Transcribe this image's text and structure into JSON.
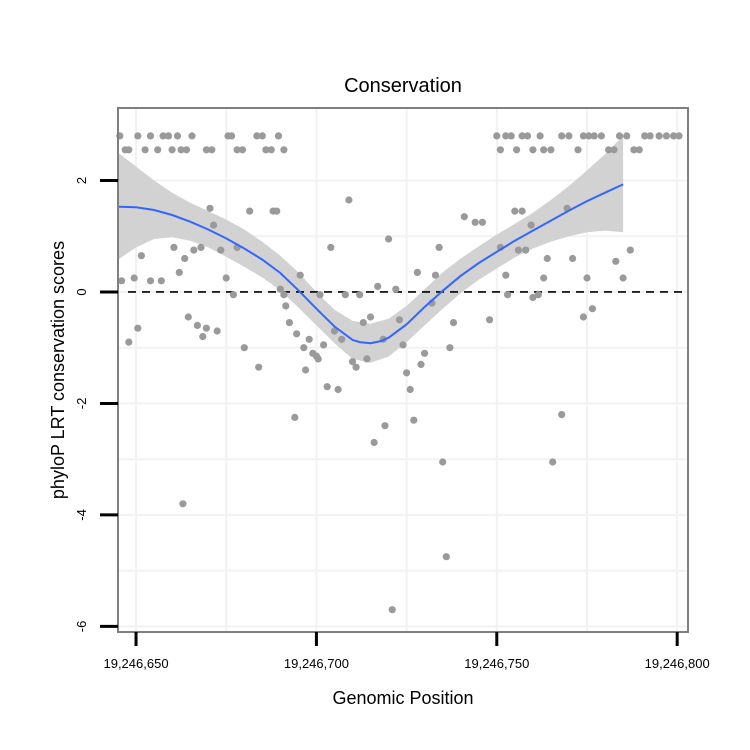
{
  "chart_data": {
    "type": "scatter",
    "title": "Conservation",
    "xlabel": "Genomic Position",
    "ylabel": "phyloP LRT conservation scores",
    "xlim": [
      19246645,
      19246803
    ],
    "ylim": [
      -6.1,
      3.3
    ],
    "x_ticks": [
      19246650,
      19246700,
      19246750,
      19246800
    ],
    "x_tick_labels": [
      "19,246,650",
      "19,246,700",
      "19,246,750",
      "19,246,800"
    ],
    "y_ticks": [
      -6,
      -4,
      -2,
      0,
      2
    ],
    "y_tick_labels": [
      "-6",
      "-4",
      "-2",
      "0",
      "2"
    ],
    "reference_line": {
      "y": 0,
      "style": "dashed",
      "color": "#000000"
    },
    "colors": {
      "points": "#9a9a9a",
      "smooth_line": "#3366ff",
      "ribbon": "#d0d0d0",
      "grid": "#f2f2f2",
      "panel_border": "#7f7f7f"
    },
    "points": [
      [
        19246645.5,
        2.8
      ],
      [
        19246647.0,
        2.55
      ],
      [
        19246648.0,
        2.55
      ],
      [
        19246650.5,
        2.8
      ],
      [
        19246652.5,
        2.55
      ],
      [
        19246654.0,
        2.8
      ],
      [
        19246656.0,
        2.55
      ],
      [
        19246657.5,
        2.8
      ],
      [
        19246659.0,
        2.8
      ],
      [
        19246660.0,
        2.55
      ],
      [
        19246661.5,
        2.8
      ],
      [
        19246662.5,
        2.55
      ],
      [
        19246664.0,
        2.55
      ],
      [
        19246665.5,
        2.8
      ],
      [
        19246669.5,
        2.55
      ],
      [
        19246671.0,
        2.55
      ],
      [
        19246675.5,
        2.8
      ],
      [
        19246676.5,
        2.8
      ],
      [
        19246678.0,
        2.55
      ],
      [
        19246679.5,
        2.55
      ],
      [
        19246683.5,
        2.8
      ],
      [
        19246685.0,
        2.8
      ],
      [
        19246686.0,
        2.55
      ],
      [
        19246687.5,
        2.55
      ],
      [
        19246689.5,
        2.8
      ],
      [
        19246691.0,
        2.55
      ],
      [
        19246750.0,
        2.8
      ],
      [
        19246751.0,
        2.55
      ],
      [
        19246752.5,
        2.8
      ],
      [
        19246754.0,
        2.8
      ],
      [
        19246755.5,
        2.55
      ],
      [
        19246757.0,
        2.8
      ],
      [
        19246758.5,
        2.8
      ],
      [
        19246760.0,
        2.55
      ],
      [
        19246762.0,
        2.8
      ],
      [
        19246763.0,
        2.55
      ],
      [
        19246765.0,
        2.55
      ],
      [
        19246768.0,
        2.8
      ],
      [
        19246770.0,
        2.8
      ],
      [
        19246772.5,
        2.55
      ],
      [
        19246774.0,
        2.8
      ],
      [
        19246775.5,
        2.8
      ],
      [
        19246777.0,
        2.8
      ],
      [
        19246779.0,
        2.8
      ],
      [
        19246781.0,
        2.55
      ],
      [
        19246782.5,
        2.55
      ],
      [
        19246784.0,
        2.8
      ],
      [
        19246786.0,
        2.8
      ],
      [
        19246788.0,
        2.55
      ],
      [
        19246789.5,
        2.55
      ],
      [
        19246791.0,
        2.8
      ],
      [
        19246792.5,
        2.8
      ],
      [
        19246795.0,
        2.8
      ],
      [
        19246797.0,
        2.8
      ],
      [
        19246799.0,
        2.8
      ],
      [
        19246800.5,
        2.8
      ],
      [
        19246646.0,
        0.2
      ],
      [
        19246648.0,
        -0.9
      ],
      [
        19246649.5,
        0.25
      ],
      [
        19246650.5,
        -0.65
      ],
      [
        19246651.5,
        0.65
      ],
      [
        19246654.0,
        0.2
      ],
      [
        19246657.0,
        0.2
      ],
      [
        19246660.5,
        0.8
      ],
      [
        19246662.0,
        0.35
      ],
      [
        19246663.5,
        0.6
      ],
      [
        19246664.5,
        -0.45
      ],
      [
        19246666.0,
        0.75
      ],
      [
        19246667.0,
        -0.6
      ],
      [
        19246668.0,
        0.8
      ],
      [
        19246668.5,
        -0.8
      ],
      [
        19246669.5,
        -0.65
      ],
      [
        19246670.5,
        1.5
      ],
      [
        19246671.5,
        1.2
      ],
      [
        19246672.5,
        -0.7
      ],
      [
        19246673.5,
        0.75
      ],
      [
        19246675.0,
        0.25
      ],
      [
        19246677.0,
        -0.05
      ],
      [
        19246678.0,
        0.8
      ],
      [
        19246680.0,
        -1.0
      ],
      [
        19246681.5,
        1.45
      ],
      [
        19246684.0,
        -1.35
      ],
      [
        19246688.0,
        1.45
      ],
      [
        19246689.0,
        1.45
      ],
      [
        19246690.0,
        0.05
      ],
      [
        19246691.0,
        -0.05
      ],
      [
        19246691.5,
        -0.25
      ],
      [
        19246692.5,
        -0.55
      ],
      [
        19246694.0,
        -2.25
      ],
      [
        19246694.5,
        -0.75
      ],
      [
        19246695.5,
        0.3
      ],
      [
        19246696.5,
        -1.0
      ],
      [
        19246697.0,
        -1.4
      ],
      [
        19246698.0,
        -0.85
      ],
      [
        19246699.0,
        -1.1
      ],
      [
        19246700.0,
        -1.15
      ],
      [
        19246700.5,
        -1.2
      ],
      [
        19246701.0,
        -0.05
      ],
      [
        19246702.0,
        -0.95
      ],
      [
        19246703.0,
        -1.7
      ],
      [
        19246704.0,
        0.8
      ],
      [
        19246705.0,
        -0.7
      ],
      [
        19246706.0,
        -1.75
      ],
      [
        19246707.0,
        -0.85
      ],
      [
        19246708.0,
        -0.05
      ],
      [
        19246709.0,
        1.65
      ],
      [
        19246710.0,
        -1.25
      ],
      [
        19246711.0,
        -1.35
      ],
      [
        19246712.0,
        -0.05
      ],
      [
        19246713.0,
        -0.55
      ],
      [
        19246714.0,
        -1.2
      ],
      [
        19246715.0,
        -0.45
      ],
      [
        19246716.0,
        -2.7
      ],
      [
        19246717.0,
        0.1
      ],
      [
        19246718.5,
        -0.85
      ],
      [
        19246719.0,
        -2.4
      ],
      [
        19246720.0,
        0.95
      ],
      [
        19246721.0,
        -5.7
      ],
      [
        19246722.0,
        0.05
      ],
      [
        19246723.0,
        -0.5
      ],
      [
        19246724.0,
        -0.95
      ],
      [
        19246725.0,
        -1.45
      ],
      [
        19246726.0,
        -1.75
      ],
      [
        19246727.0,
        -2.3
      ],
      [
        19246728.0,
        0.35
      ],
      [
        19246729.0,
        -1.3
      ],
      [
        19246730.0,
        -1.1
      ],
      [
        19246732.0,
        -0.2
      ],
      [
        19246733.0,
        0.3
      ],
      [
        19246734.0,
        0.8
      ],
      [
        19246735.0,
        -3.05
      ],
      [
        19246736.0,
        -4.75
      ],
      [
        19246737.0,
        -1.0
      ],
      [
        19246738.0,
        -0.55
      ],
      [
        19246741.0,
        1.35
      ],
      [
        19246744.0,
        1.25
      ],
      [
        19246746.0,
        1.25
      ],
      [
        19246748.0,
        -0.5
      ],
      [
        19246751.0,
        0.8
      ],
      [
        19246752.5,
        0.3
      ],
      [
        19246753.0,
        -0.05
      ],
      [
        19246755.0,
        1.45
      ],
      [
        19246756.0,
        0.75
      ],
      [
        19246757.0,
        1.45
      ],
      [
        19246758.0,
        0.75
      ],
      [
        19246759.5,
        1.2
      ],
      [
        19246760.0,
        -0.1
      ],
      [
        19246761.5,
        -0.05
      ],
      [
        19246763.0,
        0.25
      ],
      [
        19246764.0,
        0.6
      ],
      [
        19246765.5,
        -3.05
      ],
      [
        19246768.0,
        -2.2
      ],
      [
        19246769.5,
        1.5
      ],
      [
        19246771.0,
        0.6
      ],
      [
        19246774.0,
        -0.45
      ],
      [
        19246775.0,
        0.25
      ],
      [
        19246776.5,
        -0.3
      ],
      [
        19246783.0,
        0.55
      ],
      [
        19246785.0,
        0.25
      ],
      [
        19246787.0,
        0.75
      ],
      [
        19246663.0,
        -3.8
      ]
    ],
    "smooth_line": [
      [
        19246645,
        1.53
      ],
      [
        19246650,
        1.52
      ],
      [
        19246655,
        1.47
      ],
      [
        19246660,
        1.38
      ],
      [
        19246665,
        1.26
      ],
      [
        19246670,
        1.12
      ],
      [
        19246675,
        0.96
      ],
      [
        19246680,
        0.78
      ],
      [
        19246685,
        0.58
      ],
      [
        19246690,
        0.34
      ],
      [
        19246695,
        0.03
      ],
      [
        19246700,
        -0.3
      ],
      [
        19246705,
        -0.62
      ],
      [
        19246710,
        -0.86
      ],
      [
        19246712,
        -0.9
      ],
      [
        19246715,
        -0.92
      ],
      [
        19246718,
        -0.88
      ],
      [
        19246720,
        -0.82
      ],
      [
        19246725,
        -0.58
      ],
      [
        19246730,
        -0.27
      ],
      [
        19246735,
        0.02
      ],
      [
        19246740,
        0.29
      ],
      [
        19246745,
        0.52
      ],
      [
        19246750,
        0.72
      ],
      [
        19246755,
        0.92
      ],
      [
        19246760,
        1.1
      ],
      [
        19246765,
        1.28
      ],
      [
        19246770,
        1.46
      ],
      [
        19246775,
        1.63
      ],
      [
        19246780,
        1.78
      ],
      [
        19246785,
        1.93
      ]
    ],
    "ribbon_upper": [
      [
        19246645,
        2.5
      ],
      [
        19246650,
        2.25
      ],
      [
        19246655,
        2.0
      ],
      [
        19246660,
        1.78
      ],
      [
        19246665,
        1.6
      ],
      [
        19246670,
        1.45
      ],
      [
        19246675,
        1.3
      ],
      [
        19246680,
        1.12
      ],
      [
        19246685,
        0.9
      ],
      [
        19246690,
        0.65
      ],
      [
        19246695,
        0.35
      ],
      [
        19246700,
        0.0
      ],
      [
        19246705,
        -0.32
      ],
      [
        19246710,
        -0.52
      ],
      [
        19246715,
        -0.57
      ],
      [
        19246720,
        -0.48
      ],
      [
        19246725,
        -0.25
      ],
      [
        19246730,
        0.05
      ],
      [
        19246735,
        0.35
      ],
      [
        19246740,
        0.6
      ],
      [
        19246745,
        0.82
      ],
      [
        19246750,
        1.03
      ],
      [
        19246755,
        1.22
      ],
      [
        19246760,
        1.42
      ],
      [
        19246765,
        1.65
      ],
      [
        19246770,
        1.9
      ],
      [
        19246775,
        2.18
      ],
      [
        19246780,
        2.47
      ],
      [
        19246785,
        2.8
      ]
    ],
    "ribbon_lower": [
      [
        19246645,
        0.58
      ],
      [
        19246650,
        0.8
      ],
      [
        19246655,
        0.95
      ],
      [
        19246660,
        0.98
      ],
      [
        19246665,
        0.92
      ],
      [
        19246670,
        0.8
      ],
      [
        19246675,
        0.63
      ],
      [
        19246680,
        0.45
      ],
      [
        19246685,
        0.26
      ],
      [
        19246690,
        0.03
      ],
      [
        19246695,
        -0.28
      ],
      [
        19246700,
        -0.6
      ],
      [
        19246705,
        -0.92
      ],
      [
        19246710,
        -1.2
      ],
      [
        19246715,
        -1.27
      ],
      [
        19246720,
        -1.16
      ],
      [
        19246725,
        -0.9
      ],
      [
        19246730,
        -0.6
      ],
      [
        19246735,
        -0.3
      ],
      [
        19246740,
        -0.02
      ],
      [
        19246745,
        0.22
      ],
      [
        19246750,
        0.42
      ],
      [
        19246755,
        0.62
      ],
      [
        19246760,
        0.78
      ],
      [
        19246765,
        0.9
      ],
      [
        19246770,
        1.0
      ],
      [
        19246775,
        1.07
      ],
      [
        19246780,
        1.1
      ],
      [
        19246785,
        1.07
      ]
    ]
  }
}
